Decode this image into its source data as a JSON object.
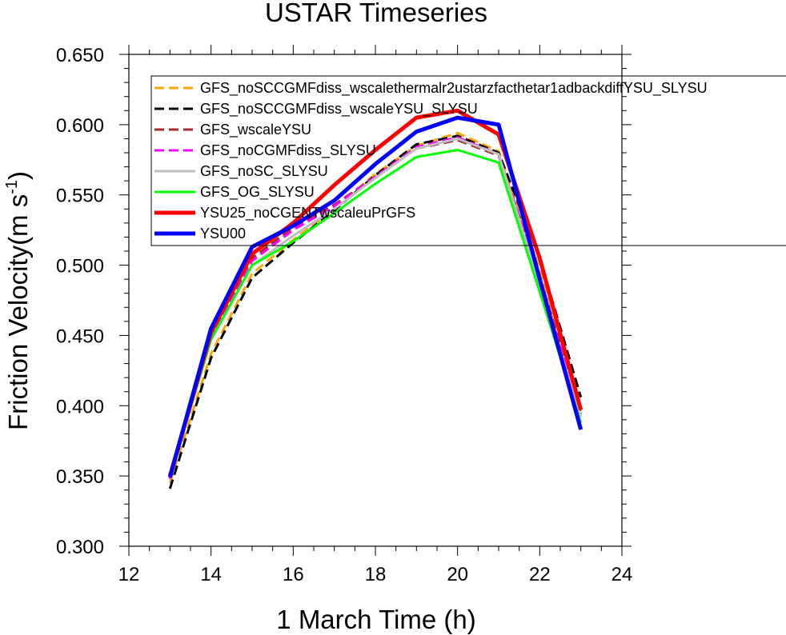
{
  "chart_data": {
    "type": "line",
    "title": "USTAR Timeseries",
    "xlabel": "1 March Time (h)",
    "ylabel": "Friction Velocity(m s",
    "ylabel_sup": "-1",
    "ylabel_close": ")",
    "xlim": [
      12,
      24
    ],
    "ylim": [
      0.3,
      0.65
    ],
    "xticks": [
      "12",
      "14",
      "16",
      "18",
      "20",
      "22",
      "24"
    ],
    "yticks": [
      "0.300",
      "0.350",
      "0.400",
      "0.450",
      "0.500",
      "0.550",
      "0.600",
      "0.650"
    ],
    "grid": false,
    "legend_position": "top-left",
    "x": [
      13,
      14,
      15,
      16,
      17,
      18,
      19,
      20,
      21,
      22,
      23
    ],
    "series": [
      {
        "name": "GFS_noSCCGMFdiss_wscalethermalr2ustarzfacthetar1adbackdiffYSU_SLYSU",
        "color": "#ffa500",
        "style": "dashed",
        "values": [
          0.345,
          0.437,
          0.494,
          0.518,
          0.54,
          0.565,
          0.585,
          0.594,
          0.581,
          0.497,
          0.384
        ]
      },
      {
        "name": "GFS_noSCCGMFdiss_wscaleYSU_SLYSU",
        "color": "#000000",
        "style": "dashed",
        "values": [
          0.341,
          0.434,
          0.491,
          0.516,
          0.539,
          0.564,
          0.586,
          0.592,
          0.58,
          0.505,
          0.406
        ]
      },
      {
        "name": "GFS_wscaleYSU",
        "color": "#a52a2a",
        "style": "dashed",
        "values": [
          0.349,
          0.449,
          0.505,
          0.527,
          0.543,
          0.563,
          0.583,
          0.589,
          0.578,
          0.492,
          0.395
        ]
      },
      {
        "name": "GFS_noCGMFdiss_SLYSU",
        "color": "#ff00ff",
        "style": "dashed",
        "values": [
          0.348,
          0.448,
          0.503,
          0.525,
          0.542,
          0.563,
          0.584,
          0.591,
          0.579,
          0.489,
          0.394
        ]
      },
      {
        "name": "GFS_noSC_SLYSU",
        "color": "#bebebe",
        "style": "solid",
        "values": [
          0.349,
          0.447,
          0.5,
          0.521,
          0.54,
          0.562,
          0.583,
          0.59,
          0.579,
          0.486,
          0.392
        ]
      },
      {
        "name": "GFS_OG_SLYSU",
        "color": "#00ff00",
        "style": "solid",
        "values": [
          0.35,
          0.447,
          0.5,
          0.517,
          0.537,
          0.558,
          0.577,
          0.582,
          0.573,
          0.481,
          0.388
        ]
      },
      {
        "name": "YSU25_noCGENTwscaleuPrGFS",
        "color": "#ff0000",
        "style": "thick",
        "values": [
          0.35,
          0.452,
          0.508,
          0.53,
          0.557,
          0.582,
          0.605,
          0.61,
          0.593,
          0.505,
          0.397
        ]
      },
      {
        "name": "YSU00",
        "color": "#0000ff",
        "style": "thick",
        "values": [
          0.349,
          0.455,
          0.513,
          0.528,
          0.546,
          0.572,
          0.595,
          0.605,
          0.6,
          0.49,
          0.383
        ]
      }
    ]
  }
}
